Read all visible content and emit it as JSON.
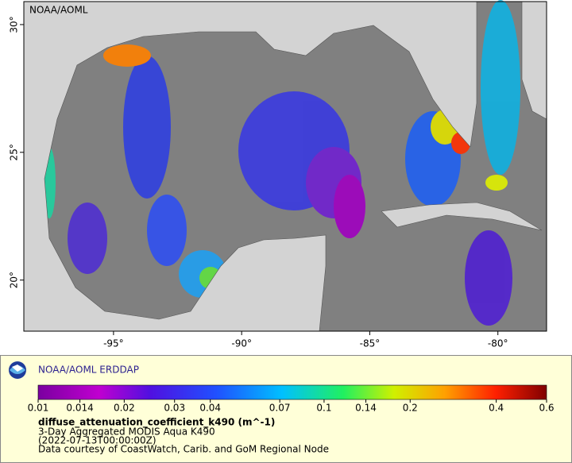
{
  "map": {
    "type": "map",
    "label": "NOAA/AOML",
    "xlim": [
      -98.5,
      -78.1
    ],
    "ylim": [
      18,
      30.9
    ],
    "xticks": [
      {
        "value": -95,
        "label": "-95°"
      },
      {
        "value": -90,
        "label": "-90°"
      },
      {
        "value": -85,
        "label": "-85°"
      },
      {
        "value": -80,
        "label": "-80°"
      }
    ],
    "yticks": [
      {
        "value": 20,
        "label": "20°"
      },
      {
        "value": 25,
        "label": "25°"
      },
      {
        "value": 30,
        "label": "30°"
      }
    ]
  },
  "legend": {
    "title": "NOAA/AOML ERDDAP",
    "colorbar": {
      "scale": "log",
      "lim": [
        0.01,
        0.6
      ],
      "ticks": [
        0.01,
        0.014,
        0.02,
        0.03,
        0.04,
        0.07,
        0.1,
        0.14,
        0.2,
        0.4,
        0.6
      ]
    },
    "variable": "diffuse_attenuation_coefficient_k490 (m^-1)",
    "lines": [
      "3-Day Aggregated MODIS Aqua K490",
      "(2022-07-13T00:00:00Z)",
      "Data courtesy of CoastWatch, Carib. and GoM Regional Node"
    ]
  }
}
